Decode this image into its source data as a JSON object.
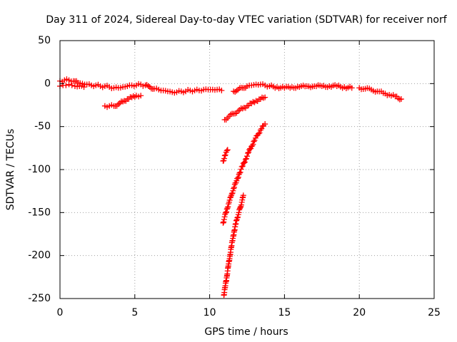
{
  "chart_data": {
    "type": "scatter",
    "title": "Day 311 of 2024, Sidereal Day-to-day VTEC variation (SDTVAR) for receiver norf",
    "xlabel": "GPS time / hours",
    "ylabel": "SDTVAR / TECUs",
    "xlim": [
      0,
      25
    ],
    "ylim": [
      -250,
      50
    ],
    "xticks": [
      0,
      5,
      10,
      15,
      20,
      25
    ],
    "yticks": [
      50,
      0,
      -50,
      -100,
      -150,
      -200,
      -250
    ],
    "xtick_labels": [
      "0",
      "5",
      "10",
      "15",
      "20",
      "25"
    ],
    "ytick_labels": [
      "50",
      "0",
      "-50",
      "-100",
      "-150",
      "-200",
      "-250"
    ],
    "grid": true,
    "marker": "+",
    "color": "#ff0000",
    "series": [
      {
        "name": "main-band",
        "x": [
          0.0,
          0.3,
          0.6,
          0.9,
          1.2,
          1.5,
          1.8,
          2.1,
          2.4,
          2.7,
          3.0,
          3.3,
          3.6,
          3.9,
          4.2,
          4.5,
          4.8,
          5.1,
          5.4,
          5.7,
          6.0,
          6.3,
          6.6,
          6.9,
          7.2,
          7.5,
          7.8,
          8.1,
          8.4,
          8.7,
          9.0,
          9.3,
          9.6,
          9.9,
          10.2,
          10.5,
          10.8
        ],
        "y": [
          3,
          4,
          4,
          3,
          1,
          0,
          -1,
          -2,
          -2,
          -3,
          -3,
          -4,
          -5,
          -5,
          -4,
          -3,
          -2,
          -2,
          -1,
          -2,
          -4,
          -6,
          -7,
          -8,
          -9,
          -10,
          -10,
          -9,
          -9,
          -8,
          -8,
          -8,
          -7,
          -7,
          -7,
          -7,
          -8
        ]
      },
      {
        "name": "left-start-lower",
        "x": [
          0.0,
          0.2,
          0.4,
          0.6,
          0.8,
          1.0,
          1.3,
          1.6
        ],
        "y": [
          -3,
          -2,
          -2,
          -1,
          -2,
          -3,
          -3,
          -4
        ]
      },
      {
        "name": "lower-arc",
        "x": [
          3.0,
          3.3,
          3.6,
          3.9,
          4.2,
          4.5,
          4.8,
          5.1,
          5.4
        ],
        "y": [
          -26,
          -26,
          -26,
          -24,
          -21,
          -18,
          -16,
          -14,
          -14
        ]
      },
      {
        "name": "post-gap-band",
        "x": [
          11.6,
          11.9,
          12.2,
          12.5,
          12.8,
          13.1,
          13.4,
          13.7,
          14.0,
          14.5,
          15.0,
          15.5,
          16.0,
          16.5,
          17.0,
          17.5,
          18.0,
          18.5,
          19.0,
          19.5
        ],
        "y": [
          -9,
          -7,
          -5,
          -3,
          -2,
          -1,
          -1,
          -2,
          -3,
          -4,
          -5,
          -4,
          -4,
          -3,
          -3,
          -3,
          -3,
          -3,
          -4,
          -5
        ]
      },
      {
        "name": "late-tail",
        "x": [
          20.0,
          20.4,
          20.8,
          21.2,
          21.6,
          22.0,
          22.4,
          22.8
        ],
        "y": [
          -5,
          -6,
          -7,
          -9,
          -11,
          -13,
          -15,
          -18
        ]
      },
      {
        "name": "upper-dip-track",
        "x": [
          11.0,
          11.3,
          11.6,
          11.9,
          12.2,
          12.5,
          12.8,
          13.1,
          13.4,
          13.7
        ],
        "y": [
          -42,
          -38,
          -35,
          -32,
          -29,
          -26,
          -23,
          -20,
          -18,
          -16
        ]
      },
      {
        "name": "short-segment",
        "x": [
          10.9,
          11.05,
          11.2
        ],
        "y": [
          -90,
          -83,
          -77
        ]
      },
      {
        "name": "deep-dip-track-a",
        "x": [
          10.9,
          11.0,
          11.15,
          11.3,
          11.45,
          11.6,
          11.8,
          12.0,
          12.2,
          12.4,
          12.6,
          12.8,
          13.0,
          13.2,
          13.4,
          13.6,
          13.7
        ],
        "y": [
          -162,
          -155,
          -146,
          -138,
          -130,
          -122,
          -113,
          -104,
          -96,
          -88,
          -80,
          -73,
          -66,
          -60,
          -54,
          -49,
          -47
        ]
      },
      {
        "name": "deep-dip-track-b",
        "x": [
          10.95,
          11.05,
          11.15,
          11.25,
          11.35,
          11.45,
          11.55,
          11.65,
          11.75,
          11.85,
          11.95,
          12.05,
          12.15,
          12.25
        ],
        "y": [
          -246,
          -235,
          -224,
          -212,
          -201,
          -190,
          -180,
          -171,
          -163,
          -156,
          -150,
          -144,
          -138,
          -130
        ]
      }
    ]
  }
}
